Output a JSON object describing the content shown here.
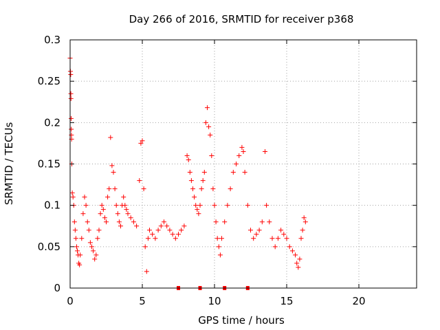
{
  "chart_data": {
    "type": "scatter",
    "title": "Day 266 of 2016, SRMTID for receiver p368",
    "xlabel": "GPS time / hours",
    "ylabel": "SRMTID / TECUs",
    "xlim": [
      0,
      24
    ],
    "ylim": [
      0,
      0.3
    ],
    "x_ticks": [
      0,
      5,
      10,
      15,
      20
    ],
    "x_tick_labels": [
      "0",
      "5",
      "10",
      "15",
      "20"
    ],
    "y_ticks": [
      0,
      0.05,
      0.1,
      0.15,
      0.2,
      0.25,
      0.3
    ],
    "y_tick_labels": [
      "0",
      "0.05",
      "0.1",
      "0.15",
      "0.2",
      "0.25",
      "0.3"
    ],
    "grid": true,
    "legend": "none",
    "marker": "plus",
    "color": "#ff0000",
    "series": [
      {
        "name": "SRMTID",
        "points": [
          [
            0.0,
            0.278
          ],
          [
            0.02,
            0.262
          ],
          [
            0.04,
            0.258
          ],
          [
            0.05,
            0.235
          ],
          [
            0.06,
            0.229
          ],
          [
            0.07,
            0.205
          ],
          [
            0.08,
            0.192
          ],
          [
            0.09,
            0.185
          ],
          [
            0.1,
            0.18
          ],
          [
            0.12,
            0.15
          ],
          [
            0.15,
            0.115
          ],
          [
            0.2,
            0.11
          ],
          [
            0.25,
            0.1
          ],
          [
            0.3,
            0.08
          ],
          [
            0.35,
            0.07
          ],
          [
            0.4,
            0.06
          ],
          [
            0.45,
            0.05
          ],
          [
            0.5,
            0.045
          ],
          [
            0.55,
            0.04
          ],
          [
            0.6,
            0.03
          ],
          [
            0.65,
            0.028
          ],
          [
            0.7,
            0.04
          ],
          [
            0.8,
            0.06
          ],
          [
            0.9,
            0.09
          ],
          [
            1.0,
            0.11
          ],
          [
            1.1,
            0.1
          ],
          [
            1.2,
            0.08
          ],
          [
            1.3,
            0.07
          ],
          [
            1.4,
            0.055
          ],
          [
            1.5,
            0.05
          ],
          [
            1.6,
            0.045
          ],
          [
            1.7,
            0.035
          ],
          [
            1.8,
            0.04
          ],
          [
            1.9,
            0.06
          ],
          [
            2.0,
            0.07
          ],
          [
            2.1,
            0.09
          ],
          [
            2.2,
            0.1
          ],
          [
            2.3,
            0.095
          ],
          [
            2.4,
            0.085
          ],
          [
            2.5,
            0.08
          ],
          [
            2.6,
            0.11
          ],
          [
            2.7,
            0.12
          ],
          [
            2.8,
            0.182
          ],
          [
            2.9,
            0.148
          ],
          [
            3.0,
            0.14
          ],
          [
            3.1,
            0.12
          ],
          [
            3.2,
            0.1
          ],
          [
            3.3,
            0.09
          ],
          [
            3.4,
            0.08
          ],
          [
            3.5,
            0.075
          ],
          [
            3.6,
            0.1
          ],
          [
            3.7,
            0.11
          ],
          [
            3.8,
            0.1
          ],
          [
            3.9,
            0.095
          ],
          [
            4.0,
            0.09
          ],
          [
            4.2,
            0.085
          ],
          [
            4.4,
            0.08
          ],
          [
            4.6,
            0.075
          ],
          [
            4.8,
            0.13
          ],
          [
            4.9,
            0.175
          ],
          [
            5.0,
            0.178
          ],
          [
            5.1,
            0.12
          ],
          [
            5.2,
            0.05
          ],
          [
            5.3,
            0.02
          ],
          [
            5.4,
            0.06
          ],
          [
            5.5,
            0.07
          ],
          [
            5.7,
            0.065
          ],
          [
            5.9,
            0.06
          ],
          [
            6.1,
            0.07
          ],
          [
            6.3,
            0.075
          ],
          [
            6.5,
            0.08
          ],
          [
            6.7,
            0.075
          ],
          [
            6.9,
            0.07
          ],
          [
            7.1,
            0.065
          ],
          [
            7.3,
            0.06
          ],
          [
            7.5,
            0.065
          ],
          [
            7.7,
            0.07
          ],
          [
            7.9,
            0.075
          ],
          [
            8.1,
            0.16
          ],
          [
            8.2,
            0.155
          ],
          [
            8.3,
            0.14
          ],
          [
            8.4,
            0.13
          ],
          [
            8.5,
            0.12
          ],
          [
            8.6,
            0.11
          ],
          [
            8.7,
            0.1
          ],
          [
            8.8,
            0.095
          ],
          [
            8.9,
            0.09
          ],
          [
            9.0,
            0.1
          ],
          [
            9.1,
            0.12
          ],
          [
            9.2,
            0.13
          ],
          [
            9.3,
            0.14
          ],
          [
            9.4,
            0.2
          ],
          [
            9.5,
            0.218
          ],
          [
            9.6,
            0.195
          ],
          [
            9.7,
            0.185
          ],
          [
            9.8,
            0.16
          ],
          [
            9.9,
            0.12
          ],
          [
            10.0,
            0.1
          ],
          [
            10.1,
            0.08
          ],
          [
            10.2,
            0.06
          ],
          [
            10.3,
            0.05
          ],
          [
            10.4,
            0.04
          ],
          [
            10.5,
            0.06
          ],
          [
            10.7,
            0.08
          ],
          [
            10.9,
            0.1
          ],
          [
            11.1,
            0.12
          ],
          [
            11.3,
            0.14
          ],
          [
            11.5,
            0.15
          ],
          [
            11.7,
            0.16
          ],
          [
            11.9,
            0.17
          ],
          [
            12.0,
            0.165
          ],
          [
            12.1,
            0.14
          ],
          [
            12.3,
            0.1
          ],
          [
            12.5,
            0.07
          ],
          [
            12.7,
            0.06
          ],
          [
            12.9,
            0.065
          ],
          [
            13.1,
            0.07
          ],
          [
            13.3,
            0.08
          ],
          [
            13.5,
            0.165
          ],
          [
            13.6,
            0.1
          ],
          [
            13.8,
            0.08
          ],
          [
            14.0,
            0.06
          ],
          [
            14.2,
            0.05
          ],
          [
            14.4,
            0.06
          ],
          [
            14.6,
            0.07
          ],
          [
            14.8,
            0.065
          ],
          [
            15.0,
            0.06
          ],
          [
            15.2,
            0.05
          ],
          [
            15.4,
            0.045
          ],
          [
            15.6,
            0.04
          ],
          [
            15.7,
            0.03
          ],
          [
            15.8,
            0.025
          ],
          [
            15.9,
            0.035
          ],
          [
            16.0,
            0.06
          ],
          [
            16.1,
            0.07
          ],
          [
            16.2,
            0.085
          ],
          [
            16.3,
            0.08
          ]
        ]
      }
    ],
    "zero_value_x": [
      7.5,
      9.0,
      10.7,
      12.3
    ]
  }
}
